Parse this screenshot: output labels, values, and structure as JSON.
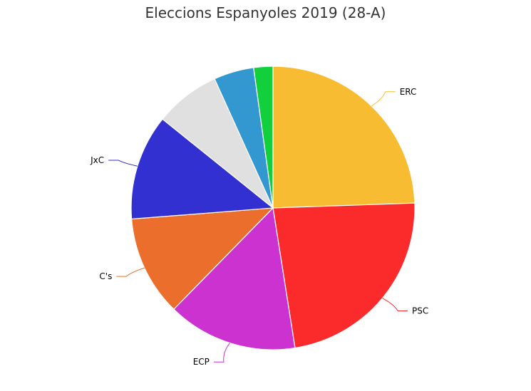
{
  "chart_data": {
    "type": "pie",
    "title": "Eleccions Espanyoles 2019 (28-A)",
    "slices": [
      {
        "label": "ERC",
        "value": 24.6,
        "color": "#f7bc32"
      },
      {
        "label": "PSC",
        "value": 23.2,
        "color": "#fb2b2b"
      },
      {
        "label": "ECP",
        "value": 14.9,
        "color": "#cb32cf"
      },
      {
        "label": "C's",
        "value": 11.5,
        "color": "#eb6e2d"
      },
      {
        "label": "JxC",
        "value": 12.1,
        "color": "#3330d2"
      },
      {
        "label": "",
        "value": 7.5,
        "color": "#e0e0e0"
      },
      {
        "label": "",
        "value": 4.6,
        "color": "#3498d0"
      },
      {
        "label": "",
        "value": 2.2,
        "color": "#12cf3c"
      }
    ],
    "start_angle": "top",
    "direction": "clockwise"
  }
}
